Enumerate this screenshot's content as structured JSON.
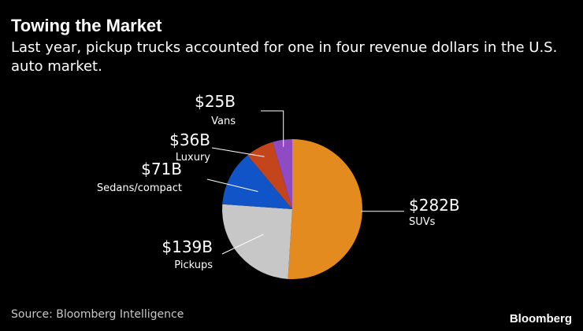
{
  "header": {
    "title": "Towing the Market",
    "subtitle": "Last year, pickup trucks accounted for one in four revenue dollars in the U.S. auto market."
  },
  "footer": {
    "source": "Source: Bloomberg Intelligence",
    "brand": "Bloomberg"
  },
  "chart_data": {
    "type": "pie",
    "title": "Towing the Market",
    "subtitle": "Last year, pickup trucks accounted for one in four revenue dollars in the U.S. auto market.",
    "unit": "$B",
    "slices": [
      {
        "label": "SUVs",
        "value": 282,
        "value_label": "$282B",
        "color": "#e38b1f"
      },
      {
        "label": "Pickups",
        "value": 139,
        "value_label": "$139B",
        "color": "#c7c7c7"
      },
      {
        "label": "Sedans/compact",
        "value": 71,
        "value_label": "$71B",
        "color": "#1154c8"
      },
      {
        "label": "Luxury",
        "value": 36,
        "value_label": "$36B",
        "color": "#c4441b"
      },
      {
        "label": "Vans",
        "value": 25,
        "value_label": "$25B",
        "color": "#8e4bc3"
      }
    ]
  }
}
